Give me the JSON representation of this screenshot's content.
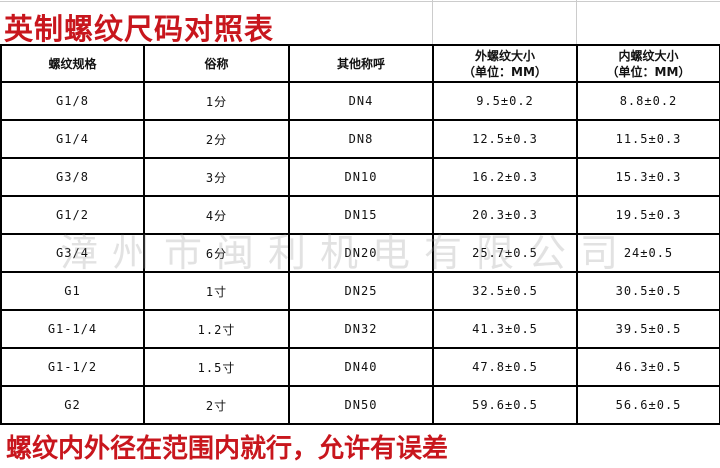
{
  "title": "英制螺纹尺码对照表",
  "headers": [
    "螺纹规格",
    "俗称",
    "其他称呼",
    "外螺纹大小",
    "（单位：MM）",
    "内螺纹大小",
    "（单位：MM）"
  ],
  "rows": [
    [
      "G1/8",
      "1分",
      "DN4",
      "9.5±0.2",
      "8.8±0.2"
    ],
    [
      "G1/4",
      "2分",
      "DN8",
      "12.5±0.3",
      "11.5±0.3"
    ],
    [
      "G3/8",
      "3分",
      "DN10",
      "16.2±0.3",
      "15.3±0.3"
    ],
    [
      "G1/2",
      "4分",
      "DN15",
      "20.3±0.3",
      "19.5±0.3"
    ],
    [
      "G3/4",
      "6分",
      "DN20",
      "25.7±0.5",
      "24±0.5"
    ],
    [
      "G1",
      "1寸",
      "DN25",
      "32.5±0.5",
      "30.5±0.5"
    ],
    [
      "G1-1/4",
      "1.2寸",
      "DN32",
      "41.3±0.5",
      "39.5±0.5"
    ],
    [
      "G1-1/2",
      "1.5寸",
      "DN40",
      "47.8±0.5",
      "46.3±0.5"
    ],
    [
      "G2",
      "2寸",
      "DN50",
      "59.6±0.5",
      "56.6±0.5"
    ]
  ],
  "watermark": "漳州市闽利机电有限公司",
  "footer": "螺纹内外径在范围内就行，允许有误差",
  "colors": {
    "title": "#c8161d",
    "footer": "#c8161d"
  }
}
